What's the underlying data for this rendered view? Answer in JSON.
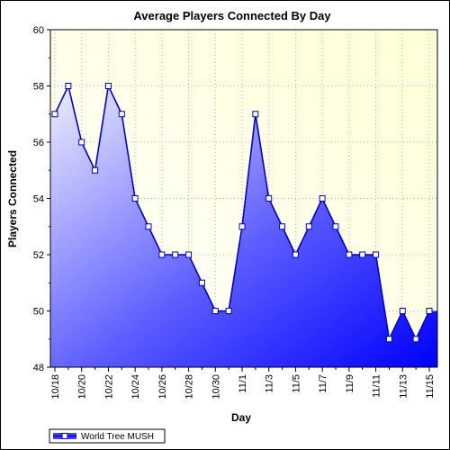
{
  "chart_data": {
    "type": "area",
    "title": "Average Players Connected By Day",
    "xlabel": "Day",
    "ylabel": "Players Connected",
    "ylim": [
      48,
      60
    ],
    "y_ticks": [
      48,
      50,
      52,
      54,
      56,
      58,
      60
    ],
    "grid": true,
    "legend_placement": "bottom-left",
    "x_tick_labels": [
      "10/18",
      "10/20",
      "10/22",
      "10/24",
      "10/26",
      "10/28",
      "10/30",
      "11/1",
      "11/3",
      "11/5",
      "11/7",
      "11/9",
      "11/11",
      "11/13",
      "11/15"
    ],
    "categories": [
      "10/18",
      "10/19",
      "10/20",
      "10/21",
      "10/22",
      "10/23",
      "10/24",
      "10/25",
      "10/26",
      "10/27",
      "10/28",
      "10/29",
      "10/30",
      "10/31",
      "11/1",
      "11/2",
      "11/3",
      "11/4",
      "11/5",
      "11/6",
      "11/7",
      "11/8",
      "11/9",
      "11/10",
      "11/11",
      "11/12",
      "11/13",
      "11/14",
      "11/15"
    ],
    "series": [
      {
        "name": "World Tree MUSH",
        "values": [
          57,
          58,
          56,
          55,
          58,
          57,
          54,
          53,
          52,
          52,
          52,
          51,
          50,
          50,
          53,
          57,
          54,
          53,
          52,
          53,
          54,
          53,
          52,
          52,
          52,
          49,
          50,
          49,
          50
        ]
      }
    ]
  },
  "colors": {
    "line": "#0000cc",
    "marker_fill": "#ffffff",
    "plot_bg_top_right": "#ffffe0",
    "area_light": "#e8e8ff",
    "area_dark": "#0000ff"
  }
}
